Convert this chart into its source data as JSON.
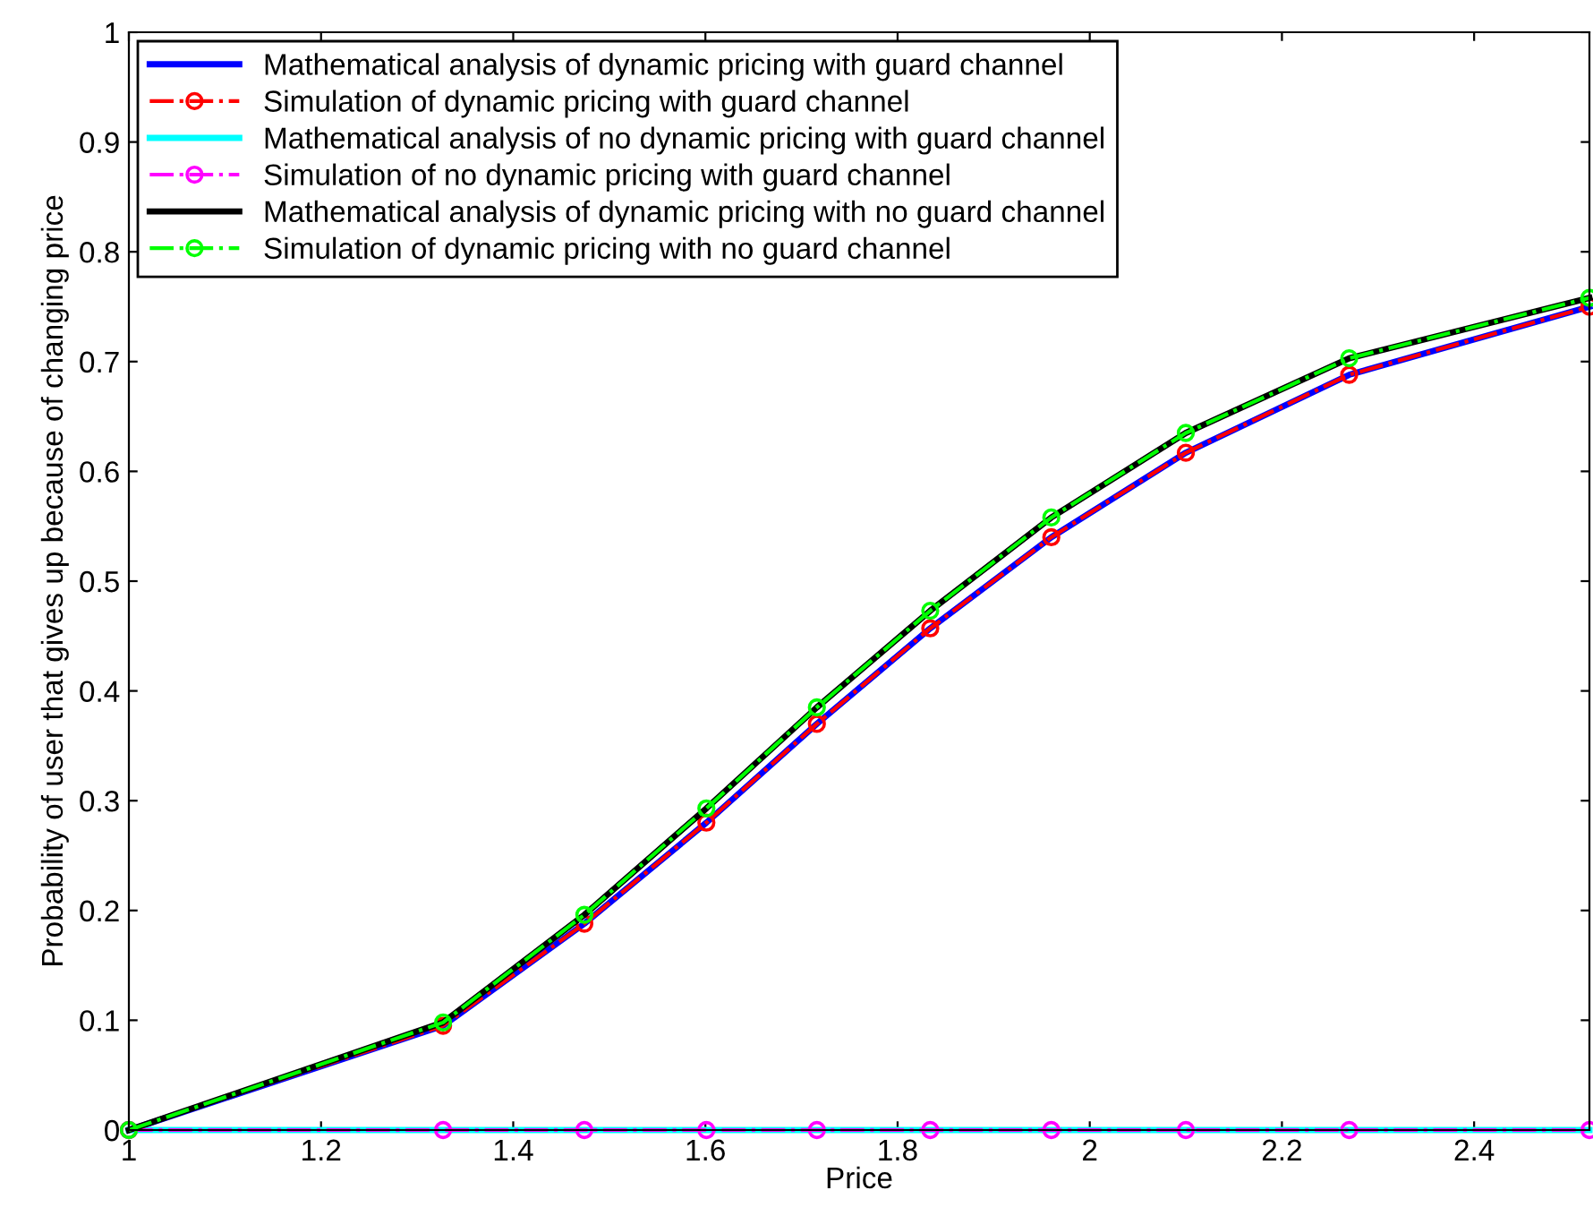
{
  "chart_data": {
    "type": "line",
    "xlabel": "Price",
    "ylabel": "Probability of user that gives up because of changing price",
    "x": [
      1,
      1.327,
      1.474,
      1.601,
      1.716,
      1.834,
      1.96,
      2.1,
      2.27,
      2.52
    ],
    "series": [
      {
        "name": "Mathematical analysis of dynamic pricing with guard channel",
        "color": "#0000ff",
        "line_style": "solid",
        "marker": "none",
        "values": [
          0,
          0.095,
          0.188,
          0.28,
          0.37,
          0.457,
          0.54,
          0.617,
          0.688,
          0.75
        ]
      },
      {
        "name": "Simulation of dynamic pricing with guard channel",
        "color": "#ff0000",
        "line_style": "dashdot",
        "marker": "circle",
        "values": [
          0,
          0.095,
          0.188,
          0.28,
          0.37,
          0.457,
          0.54,
          0.617,
          0.688,
          0.75
        ]
      },
      {
        "name": "Mathematical analysis of no dynamic pricing with guard channel",
        "color": "#00ffff",
        "line_style": "solid",
        "marker": "none",
        "values": [
          0,
          0,
          0,
          0,
          0,
          0,
          0,
          0,
          0,
          0
        ]
      },
      {
        "name": "Simulation of no dynamic pricing with guard channel",
        "color": "#ff00ff",
        "line_style": "dashdot",
        "marker": "circle",
        "values": [
          0,
          0,
          0,
          0,
          0,
          0,
          0,
          0,
          0,
          0
        ]
      },
      {
        "name": "Mathematical analysis of dynamic pricing with no guard channel",
        "color": "#000000",
        "line_style": "solid",
        "marker": "none",
        "values": [
          0,
          0.098,
          0.196,
          0.293,
          0.385,
          0.473,
          0.558,
          0.635,
          0.703,
          0.758
        ]
      },
      {
        "name": "Simulation of dynamic pricing with no guard channel",
        "color": "#00ff00",
        "line_style": "dashdot",
        "marker": "circle",
        "values": [
          0,
          0.098,
          0.196,
          0.293,
          0.385,
          0.473,
          0.558,
          0.635,
          0.703,
          0.758
        ]
      }
    ],
    "xlim": [
      1,
      2.52
    ],
    "xticks": [
      1,
      1.2,
      1.4,
      1.6,
      1.8,
      2,
      2.2,
      2.4
    ],
    "ylim": [
      0,
      1
    ],
    "yticks": [
      0,
      0.1,
      0.2,
      0.3,
      0.4,
      0.5,
      0.6,
      0.7,
      0.8,
      0.9,
      1
    ],
    "grid": false,
    "legend": "top left"
  }
}
